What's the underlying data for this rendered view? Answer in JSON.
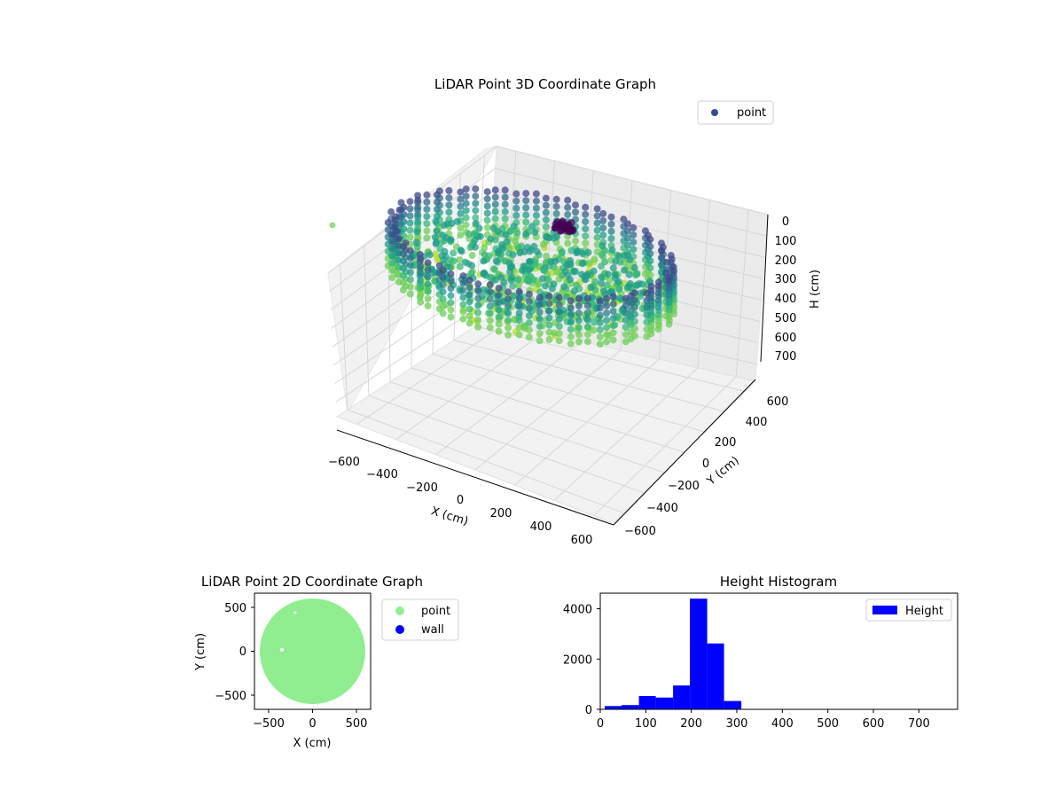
{
  "chart_data": [
    {
      "type": "scatter",
      "projection": "3d",
      "title": "LiDAR Point 3D Coordinate Graph",
      "xlabel": "X (cm)",
      "ylabel": "Y (cm)",
      "zlabel": "H (cm)",
      "xticks": [
        "−600",
        "−400",
        "−200",
        "0",
        "200",
        "400",
        "600"
      ],
      "yticks": [
        "600",
        "400",
        "200",
        "0",
        "−200",
        "−400",
        "−600"
      ],
      "zticks": [
        "0",
        "100",
        "200",
        "300",
        "400",
        "500",
        "600",
        "700"
      ],
      "xlim": [
        -650,
        650
      ],
      "ylim": [
        -650,
        650
      ],
      "zlim": [
        0,
        780
      ],
      "zaxis_inverted": true,
      "colormap": "viridis",
      "legend": {
        "placement": "top-right",
        "entries": [
          {
            "label": "point",
            "color": "#3b4a8c"
          }
        ]
      },
      "description_of_points": "ring of points, radius about 600 cm, heights about 100–300 cm, sparse interior"
    },
    {
      "type": "scatter",
      "title": "LiDAR Point 2D Coordinate Graph",
      "xlabel": "X (cm)",
      "ylabel": "Y (cm)",
      "xticks": [
        "−500",
        "0",
        "500"
      ],
      "yticks": [
        "500",
        "0",
        "−500"
      ],
      "xlim": [
        -660,
        660
      ],
      "ylim": [
        -660,
        660
      ],
      "legend": {
        "placement": "outside-right",
        "entries": [
          {
            "label": "point",
            "color": "#90ee90"
          },
          {
            "label": "wall",
            "color": "#0000ff"
          }
        ]
      },
      "series": [
        {
          "name": "point",
          "color": "#90ee90",
          "shape": "filled disc radius 600"
        }
      ]
    },
    {
      "type": "bar",
      "title": "Height Histogram",
      "xticks": [
        "0",
        "100",
        "200",
        "300",
        "400",
        "500",
        "600",
        "700"
      ],
      "yticks": [
        "0",
        "2000",
        "4000"
      ],
      "xlim": [
        0,
        785
      ],
      "ylim": [
        0,
        4620
      ],
      "bar_color": "#0000ff",
      "legend": {
        "placement": "top-right",
        "entries": [
          {
            "label": "Height",
            "color": "#0000ff"
          }
        ]
      },
      "bin_edges": [
        10,
        47,
        85,
        122,
        160,
        197,
        235,
        272,
        310,
        347,
        385,
        422,
        460,
        497,
        535,
        572,
        610,
        647,
        685,
        722,
        760
      ],
      "values": [
        130,
        170,
        530,
        470,
        950,
        4400,
        2620,
        330,
        0,
        0,
        0,
        0,
        0,
        0,
        0,
        0,
        0,
        0,
        0,
        0
      ]
    }
  ]
}
